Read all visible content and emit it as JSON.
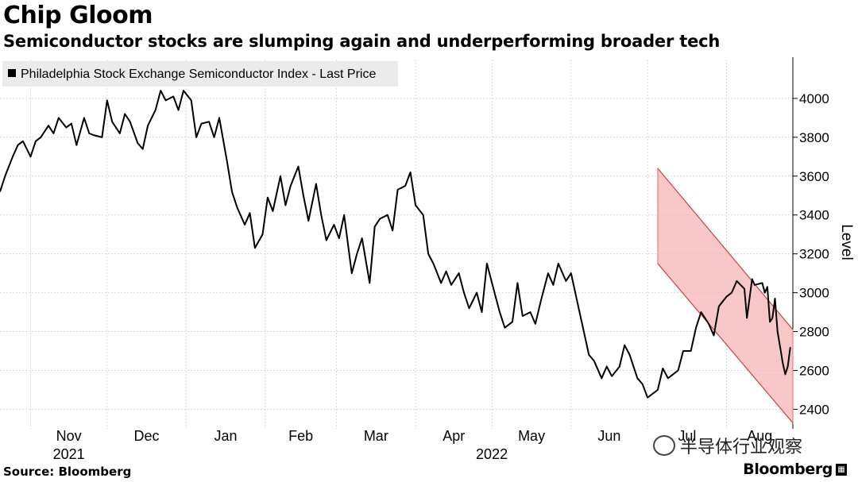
{
  "title": "Chip Gloom",
  "subtitle": "Semiconductor stocks are slumping again and underperforming broader tech",
  "source": "Source: Bloomberg",
  "brand": "Bloomberg",
  "watermark": "半导体行业观察",
  "chart_data": {
    "type": "line",
    "legend": "Philadelphia Stock Exchange Semiconductor Index - Last Price",
    "legend_position": "top-left",
    "ylabel": "Level",
    "ylim": [
      2320,
      4200
    ],
    "y_ticks": [
      2400,
      2600,
      2800,
      3000,
      3200,
      3400,
      3600,
      3800,
      4000
    ],
    "x_ticks": [
      "Nov",
      "Dec",
      "Jan",
      "Feb",
      "Mar",
      "Apr",
      "May",
      "Jun",
      "Jul",
      "Aug"
    ],
    "x_years": [
      "2021",
      "2022"
    ],
    "x_range": [
      "2021-10-20",
      "2022-08-27"
    ],
    "grid": true,
    "series": [
      {
        "name": "Philadelphia Stock Exchange Semiconductor Index - Last Price",
        "color": "#000000",
        "points": [
          [
            "2021-10-20",
            3520
          ],
          [
            "2021-10-22",
            3600
          ],
          [
            "2021-10-25",
            3700
          ],
          [
            "2021-10-27",
            3760
          ],
          [
            "2021-10-29",
            3780
          ],
          [
            "2021-11-01",
            3700
          ],
          [
            "2021-11-03",
            3780
          ],
          [
            "2021-11-05",
            3800
          ],
          [
            "2021-11-08",
            3860
          ],
          [
            "2021-11-10",
            3820
          ],
          [
            "2021-11-12",
            3900
          ],
          [
            "2021-11-15",
            3850
          ],
          [
            "2021-11-17",
            3870
          ],
          [
            "2021-11-19",
            3760
          ],
          [
            "2021-11-22",
            3900
          ],
          [
            "2021-11-24",
            3820
          ],
          [
            "2021-11-26",
            3810
          ],
          [
            "2021-11-29",
            3800
          ],
          [
            "2021-12-01",
            3990
          ],
          [
            "2021-12-03",
            3880
          ],
          [
            "2021-12-06",
            3820
          ],
          [
            "2021-12-08",
            3920
          ],
          [
            "2021-12-10",
            3880
          ],
          [
            "2021-12-13",
            3770
          ],
          [
            "2021-12-15",
            3740
          ],
          [
            "2021-12-17",
            3860
          ],
          [
            "2021-12-20",
            3940
          ],
          [
            "2021-12-22",
            4040
          ],
          [
            "2021-12-24",
            3990
          ],
          [
            "2021-12-27",
            4010
          ],
          [
            "2021-12-29",
            3940
          ],
          [
            "2021-12-31",
            4040
          ],
          [
            "2022-01-03",
            3990
          ],
          [
            "2022-01-05",
            3800
          ],
          [
            "2022-01-07",
            3870
          ],
          [
            "2022-01-10",
            3880
          ],
          [
            "2022-01-12",
            3800
          ],
          [
            "2022-01-14",
            3900
          ],
          [
            "2022-01-17",
            3680
          ],
          [
            "2022-01-19",
            3520
          ],
          [
            "2022-01-21",
            3440
          ],
          [
            "2022-01-24",
            3350
          ],
          [
            "2022-01-26",
            3410
          ],
          [
            "2022-01-28",
            3230
          ],
          [
            "2022-01-31",
            3300
          ],
          [
            "2022-02-02",
            3490
          ],
          [
            "2022-02-04",
            3420
          ],
          [
            "2022-02-07",
            3600
          ],
          [
            "2022-02-09",
            3450
          ],
          [
            "2022-02-11",
            3550
          ],
          [
            "2022-02-14",
            3650
          ],
          [
            "2022-02-16",
            3500
          ],
          [
            "2022-02-18",
            3370
          ],
          [
            "2022-02-21",
            3560
          ],
          [
            "2022-02-23",
            3400
          ],
          [
            "2022-02-25",
            3270
          ],
          [
            "2022-02-28",
            3350
          ],
          [
            "2022-03-02",
            3280
          ],
          [
            "2022-03-04",
            3400
          ],
          [
            "2022-03-07",
            3100
          ],
          [
            "2022-03-09",
            3200
          ],
          [
            "2022-03-11",
            3280
          ],
          [
            "2022-03-14",
            3050
          ],
          [
            "2022-03-16",
            3340
          ],
          [
            "2022-03-18",
            3380
          ],
          [
            "2022-03-21",
            3400
          ],
          [
            "2022-03-23",
            3320
          ],
          [
            "2022-03-25",
            3530
          ],
          [
            "2022-03-28",
            3550
          ],
          [
            "2022-03-30",
            3620
          ],
          [
            "2022-04-01",
            3450
          ],
          [
            "2022-04-04",
            3400
          ],
          [
            "2022-04-06",
            3200
          ],
          [
            "2022-04-08",
            3150
          ],
          [
            "2022-04-11",
            3050
          ],
          [
            "2022-04-13",
            3110
          ],
          [
            "2022-04-15",
            3040
          ],
          [
            "2022-04-18",
            3100
          ],
          [
            "2022-04-20",
            3000
          ],
          [
            "2022-04-22",
            2920
          ],
          [
            "2022-04-25",
            3000
          ],
          [
            "2022-04-27",
            2900
          ],
          [
            "2022-04-29",
            3150
          ],
          [
            "2022-05-02",
            3000
          ],
          [
            "2022-05-04",
            2900
          ],
          [
            "2022-05-06",
            2820
          ],
          [
            "2022-05-09",
            2850
          ],
          [
            "2022-05-11",
            3050
          ],
          [
            "2022-05-13",
            2880
          ],
          [
            "2022-05-16",
            2900
          ],
          [
            "2022-05-18",
            2840
          ],
          [
            "2022-05-20",
            2950
          ],
          [
            "2022-05-23",
            3100
          ],
          [
            "2022-05-25",
            3040
          ],
          [
            "2022-05-27",
            3150
          ],
          [
            "2022-05-30",
            3060
          ],
          [
            "2022-06-01",
            3100
          ],
          [
            "2022-06-03",
            2980
          ],
          [
            "2022-06-06",
            2800
          ],
          [
            "2022-06-08",
            2680
          ],
          [
            "2022-06-10",
            2650
          ],
          [
            "2022-06-13",
            2560
          ],
          [
            "2022-06-15",
            2620
          ],
          [
            "2022-06-17",
            2570
          ],
          [
            "2022-06-20",
            2620
          ],
          [
            "2022-06-22",
            2730
          ],
          [
            "2022-06-24",
            2680
          ],
          [
            "2022-06-27",
            2560
          ],
          [
            "2022-06-29",
            2530
          ],
          [
            "2022-07-01",
            2460
          ],
          [
            "2022-07-05",
            2500
          ],
          [
            "2022-07-07",
            2610
          ],
          [
            "2022-07-09",
            2560
          ],
          [
            "2022-07-11",
            2580
          ],
          [
            "2022-07-13",
            2600
          ],
          [
            "2022-07-15",
            2700
          ],
          [
            "2022-07-18",
            2700
          ],
          [
            "2022-07-20",
            2820
          ],
          [
            "2022-07-22",
            2900
          ],
          [
            "2022-07-25",
            2840
          ],
          [
            "2022-07-27",
            2780
          ],
          [
            "2022-07-29",
            2930
          ],
          [
            "2022-08-01",
            2980
          ],
          [
            "2022-08-03",
            3000
          ],
          [
            "2022-08-05",
            3060
          ],
          [
            "2022-08-08",
            3020
          ],
          [
            "2022-08-09",
            2870
          ],
          [
            "2022-08-11",
            3070
          ],
          [
            "2022-08-12",
            3040
          ],
          [
            "2022-08-15",
            3050
          ],
          [
            "2022-08-16",
            3000
          ],
          [
            "2022-08-17",
            3030
          ],
          [
            "2022-08-18",
            2850
          ],
          [
            "2022-08-19",
            2870
          ],
          [
            "2022-08-20",
            2970
          ],
          [
            "2022-08-21",
            2800
          ],
          [
            "2022-08-22",
            2720
          ],
          [
            "2022-08-23",
            2640
          ],
          [
            "2022-08-24",
            2580
          ],
          [
            "2022-08-25",
            2620
          ],
          [
            "2022-08-26",
            2720
          ]
        ]
      }
    ],
    "annotation_channel": {
      "color": "#f6b5b5",
      "upper": [
        [
          "2022-07-05",
          3640
        ],
        [
          "2022-08-27",
          2810
        ]
      ],
      "lower": [
        [
          "2022-07-05",
          3150
        ],
        [
          "2022-08-27",
          2330
        ]
      ]
    }
  }
}
